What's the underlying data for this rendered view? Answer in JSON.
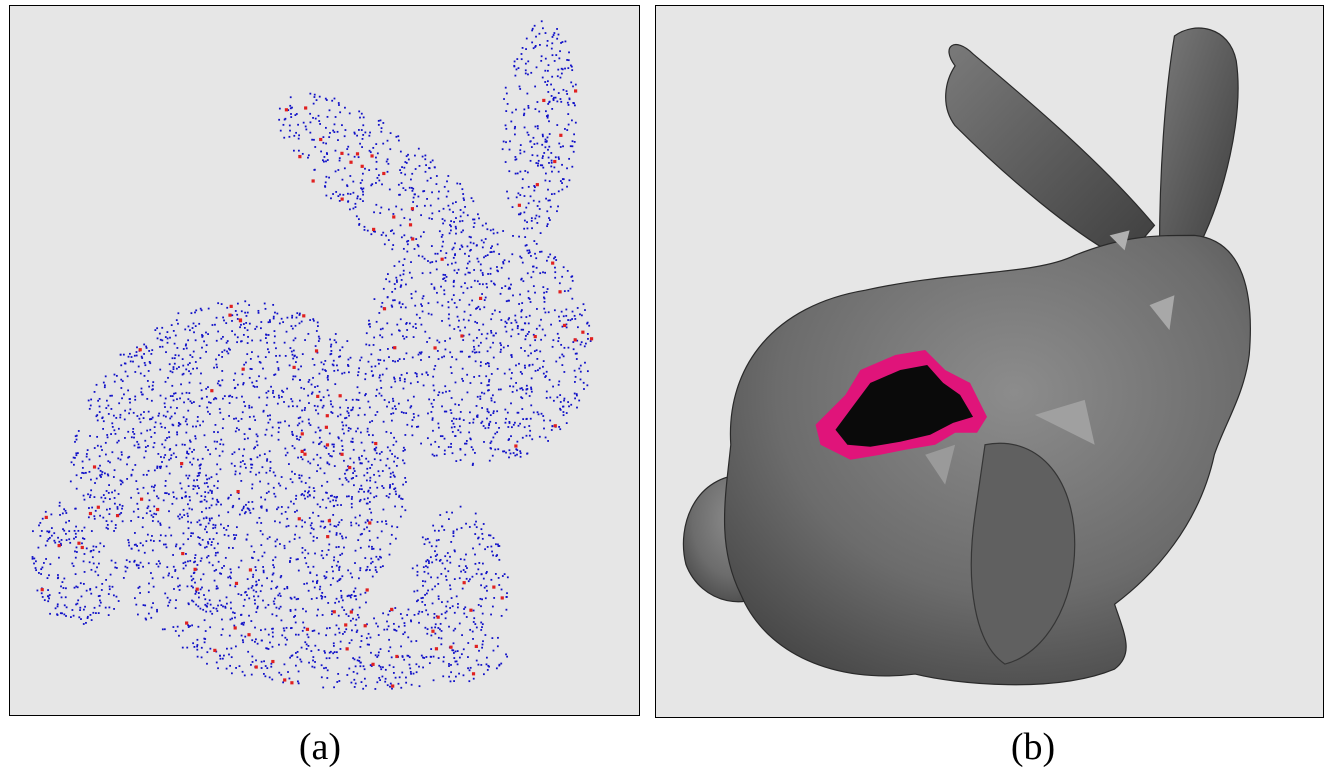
{
  "figure": {
    "panel_a": {
      "caption": "(a)"
    },
    "panel_b": {
      "caption": "(b)"
    }
  },
  "colors": {
    "background": "#e6e6e6",
    "points": "#1010c8",
    "outliers": "#e02020",
    "mesh": "#6e6e6e",
    "hole_rim": "#e0147a",
    "hole": "#0a0a0a"
  }
}
